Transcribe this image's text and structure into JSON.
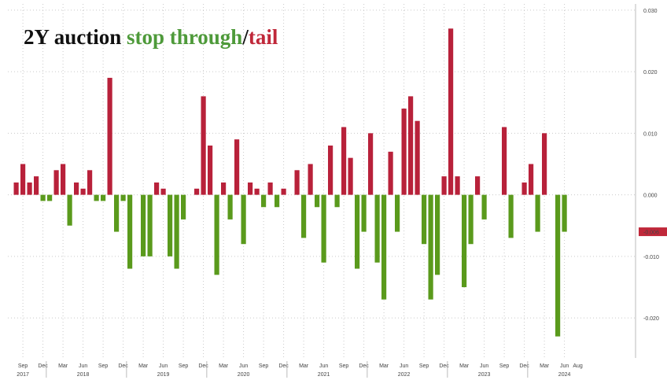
{
  "title": {
    "part1": "2Y auction ",
    "part2": "stop through",
    "part3": "/",
    "part4": "tail",
    "colors": {
      "part1": "#111111",
      "part2": "#4e9a3a",
      "part3": "#111111",
      "part4": "#c0283a"
    }
  },
  "last_value_label": "-0.006",
  "colors": {
    "positive": "#b8213a",
    "negative": "#5a9a1c",
    "last_value_bg": "#c0283a",
    "last_value_text": "#ffffff"
  },
  "chart_data": {
    "type": "bar",
    "xlabel": "",
    "ylabel": "",
    "ylim": [
      -0.0265,
      0.031
    ],
    "yticks": [
      0.03,
      0.02,
      0.01,
      0.0,
      -0.01,
      -0.02
    ],
    "ytick_labels": [
      "0.030",
      "0.020",
      "0.010",
      "0.000",
      "-0.010",
      "-0.020"
    ],
    "grid": true,
    "month_ticks": [
      "Sep",
      "Dec",
      "Mar",
      "Jun",
      "Sep",
      "Dec",
      "Mar",
      "Jun",
      "Sep",
      "Dec",
      "Mar",
      "Jun",
      "Sep",
      "Dec",
      "Mar",
      "Jun",
      "Sep",
      "Dec",
      "Mar",
      "Jun",
      "Sep",
      "Dec",
      "Mar",
      "Jun",
      "Sep",
      "Dec",
      "Mar",
      "Jun",
      "Aug"
    ],
    "year_ticks": [
      {
        "label": "2017",
        "month_index": 1
      },
      {
        "label": "2018",
        "month_index": 10
      },
      {
        "label": "2019",
        "month_index": 22
      },
      {
        "label": "2020",
        "month_index": 34
      },
      {
        "label": "2021",
        "month_index": 46
      },
      {
        "label": "2022",
        "month_index": 58
      },
      {
        "label": "2023",
        "month_index": 70
      },
      {
        "label": "2024",
        "month_index": 82
      }
    ],
    "start": "2017-08",
    "values": [
      0.002,
      0.005,
      0.002,
      0.003,
      -0.001,
      -0.001,
      0.004,
      0.005,
      -0.005,
      0.002,
      0.001,
      0.004,
      -0.001,
      -0.001,
      0.019,
      -0.006,
      -0.001,
      -0.012,
      0.0,
      -0.01,
      -0.01,
      0.002,
      0.001,
      -0.01,
      -0.012,
      -0.004,
      0.0,
      0.001,
      0.016,
      0.008,
      -0.013,
      0.002,
      -0.004,
      0.009,
      -0.008,
      0.002,
      0.001,
      -0.002,
      0.002,
      -0.002,
      0.001,
      0.0,
      0.004,
      -0.007,
      0.005,
      -0.002,
      -0.011,
      0.008,
      -0.002,
      0.011,
      0.006,
      -0.012,
      -0.006,
      0.01,
      -0.011,
      -0.017,
      0.007,
      -0.006,
      0.014,
      0.016,
      0.012,
      -0.008,
      -0.017,
      -0.013,
      0.003,
      0.027,
      0.003,
      -0.015,
      -0.008,
      0.003,
      -0.004,
      0.0,
      0.0,
      0.011,
      -0.007,
      0.0,
      0.002,
      0.005,
      -0.006,
      0.01,
      0.0,
      -0.023,
      -0.006
    ],
    "last_value": -0.006
  }
}
